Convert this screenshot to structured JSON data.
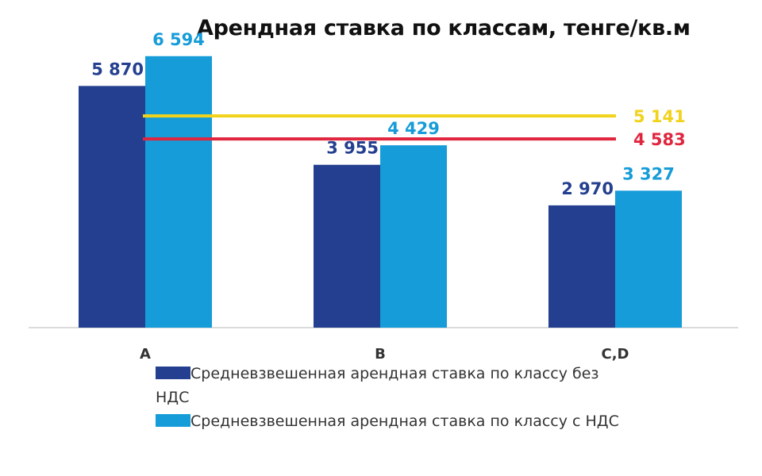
{
  "chart_data": {
    "type": "bar",
    "title": "Арендная ставка по классам, тенге/кв.м",
    "categories": [
      "A",
      "B",
      "C,D"
    ],
    "series": [
      {
        "name": "Средневзвешенная арендная ставка по классу без НДС",
        "color": "#243f8f",
        "values": [
          5870,
          3955,
          2970
        ],
        "labels": [
          "5 870",
          "3 955",
          "2 970"
        ]
      },
      {
        "name": "Средневзвешенная арендная ставка по классу с НДС",
        "color": "#169cd8",
        "values": [
          6594,
          4429,
          3327
        ],
        "labels": [
          "6 594",
          "4 429",
          "3 327"
        ]
      }
    ],
    "reference_lines": [
      {
        "value": 5141,
        "label": "5 141",
        "color": "#f2d21b"
      },
      {
        "value": 4583,
        "label": "4 583",
        "color": "#e0253e"
      }
    ],
    "xlabel": "",
    "ylabel": "",
    "ylim": [
      0,
      7000
    ],
    "grid": false,
    "legend_position": "bottom"
  }
}
